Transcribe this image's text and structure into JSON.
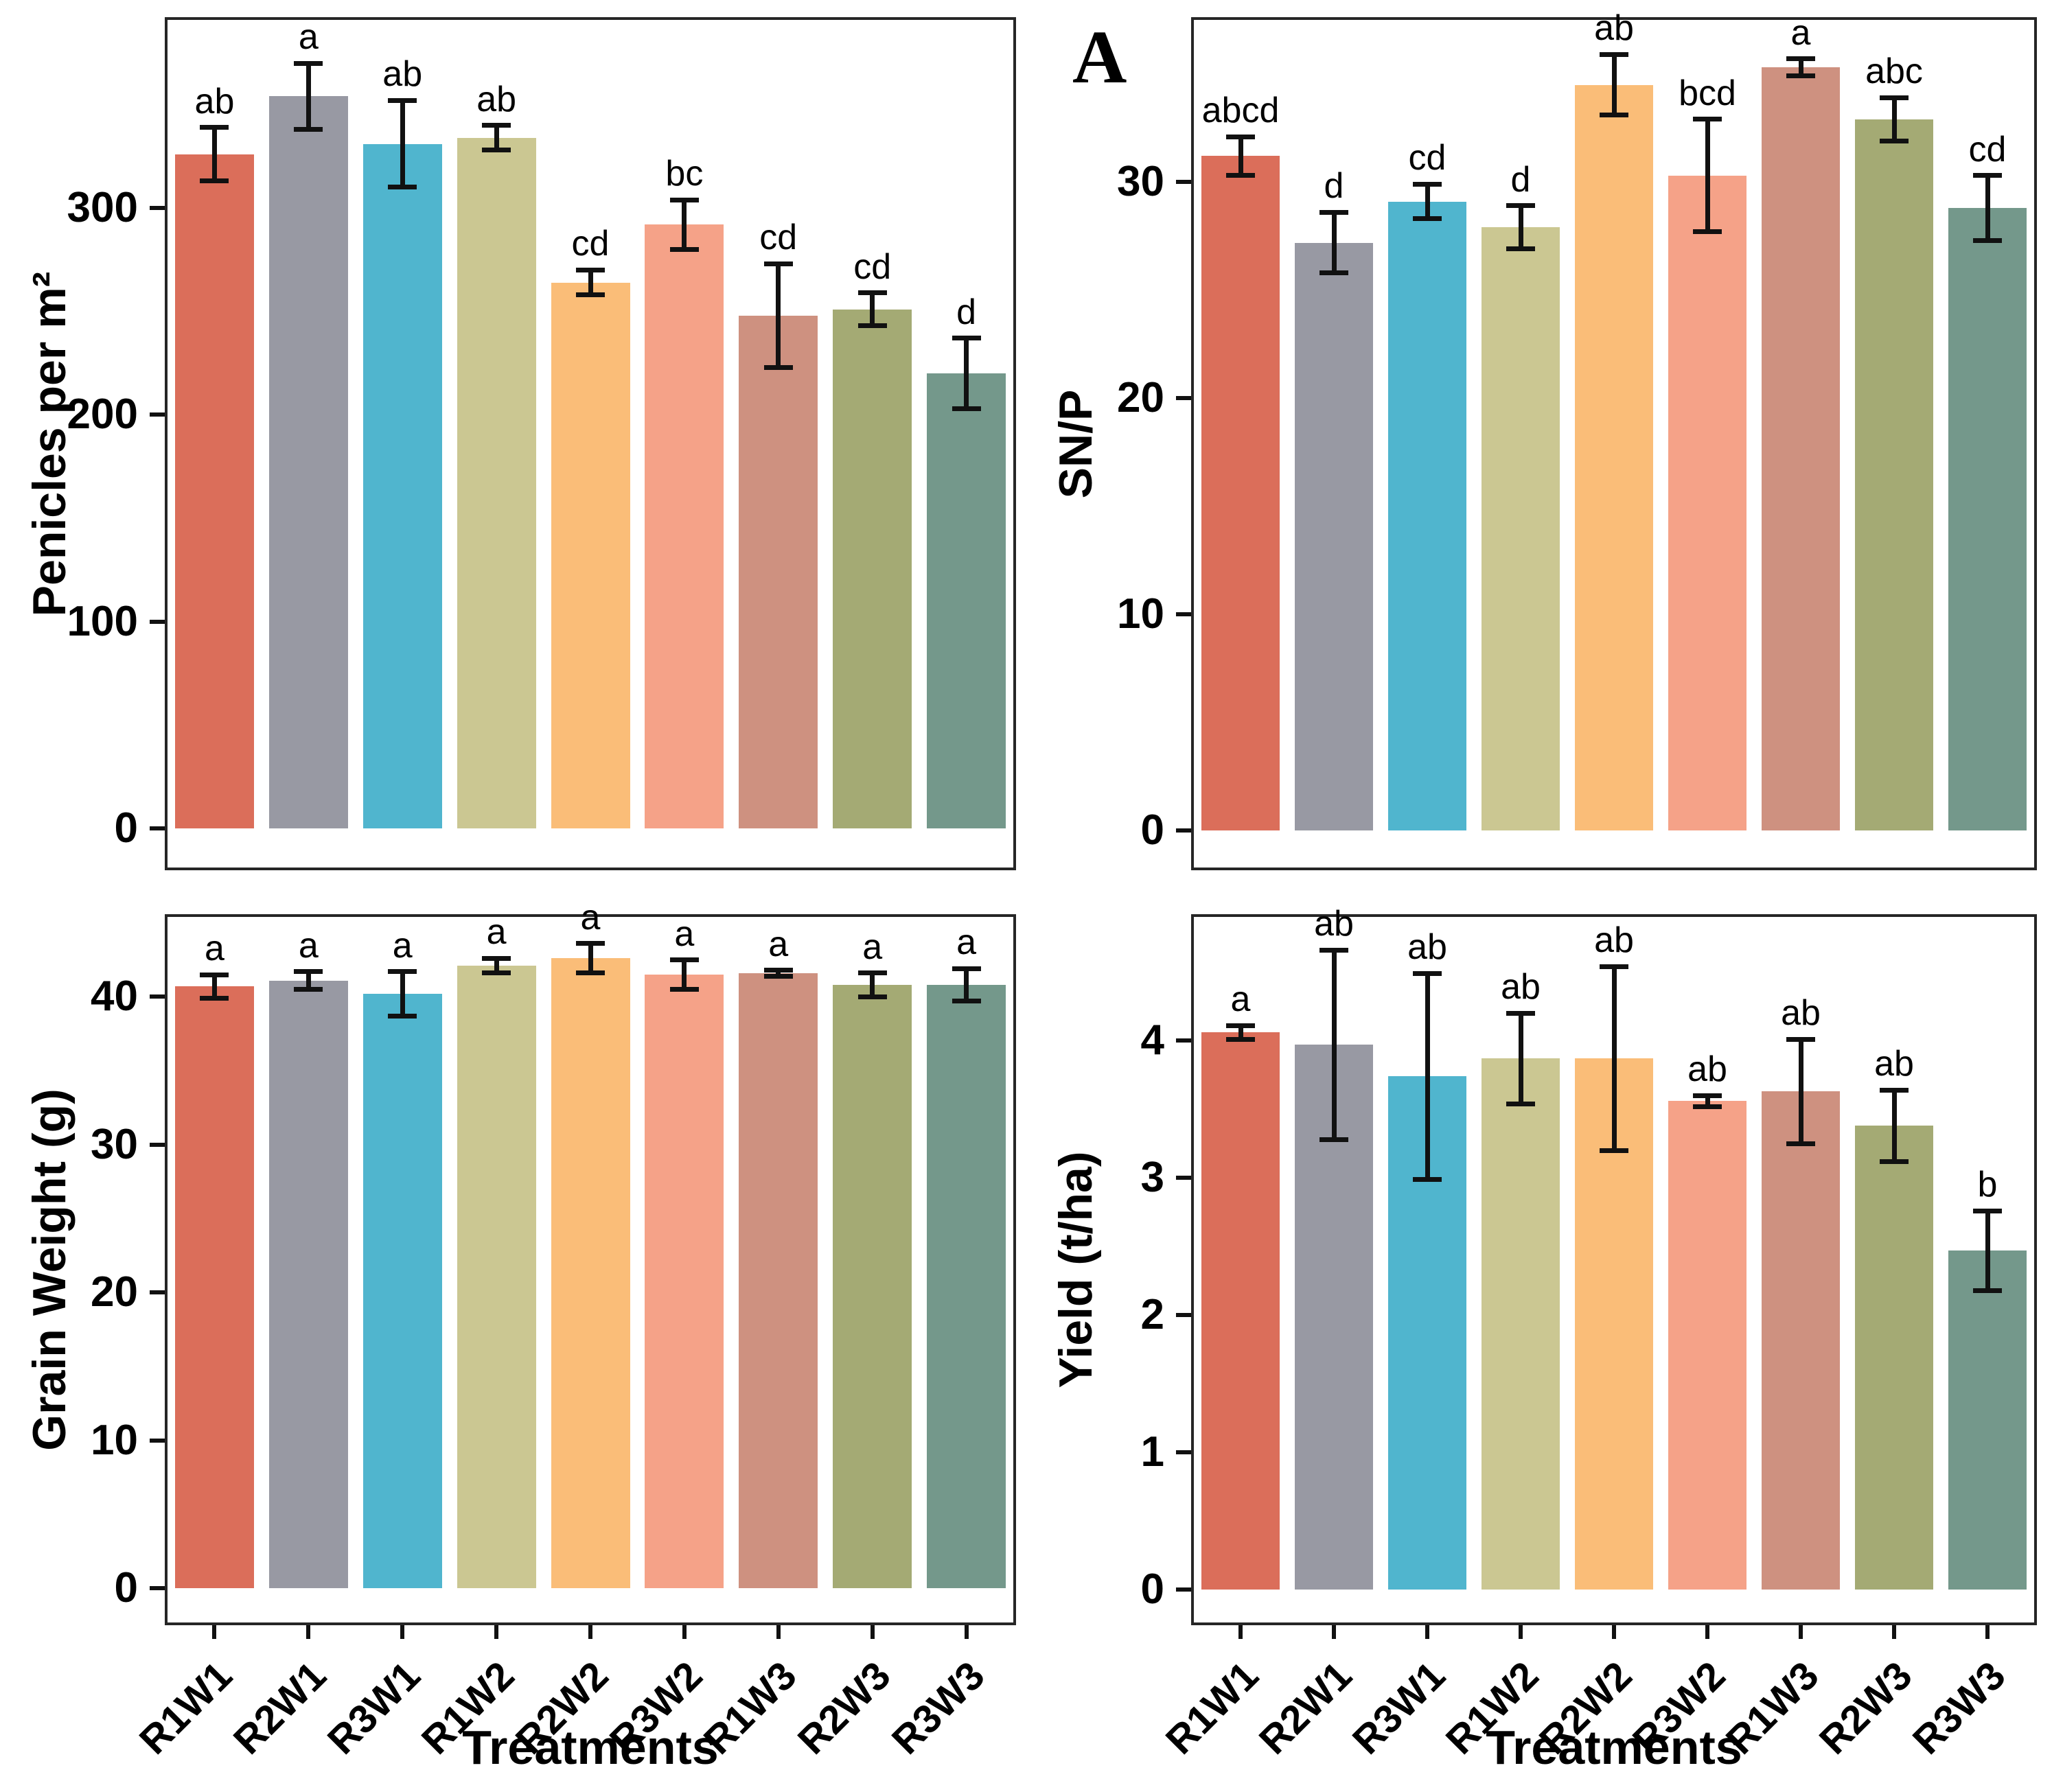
{
  "figure_label": "A",
  "x_axis_title": "Treatments",
  "categories": [
    "R1W1",
    "R2W1",
    "R3W1",
    "R1W2",
    "R2W2",
    "R3W2",
    "R1W3",
    "R2W3",
    "R3W3"
  ],
  "palette": [
    "#DB6E5A",
    "#9899A3",
    "#50B5CE",
    "#CBC792",
    "#FABD78",
    "#F5A288",
    "#CE9180",
    "#A4AA74",
    "#74988B"
  ],
  "frame_color": "#262626",
  "text_color": "#000000",
  "chart_data": [
    {
      "id": "panicles",
      "type": "bar",
      "ylabel": "Penicles per m²",
      "xlabel": "",
      "yticks": [
        0,
        100,
        200,
        300
      ],
      "ylim": [
        -19,
        391
      ],
      "show_x_labels": false,
      "legend": "none",
      "grid": false,
      "values": [
        326,
        354,
        331,
        334,
        264,
        292,
        248,
        251,
        220
      ],
      "errors": [
        13,
        16,
        21,
        6,
        6,
        12,
        25,
        8,
        17
      ],
      "letters": [
        "ab",
        "a",
        "ab",
        "ab",
        "cd",
        "bc",
        "cd",
        "cd",
        "d"
      ]
    },
    {
      "id": "snp",
      "type": "bar",
      "ylabel": "SN/P",
      "xlabel": "",
      "yticks": [
        0,
        10,
        20,
        30
      ],
      "ylim": [
        -1.7,
        37.5
      ],
      "show_x_labels": false,
      "legend": "none",
      "grid": false,
      "values": [
        31.2,
        27.2,
        29.1,
        27.9,
        34.5,
        30.3,
        35.3,
        32.9,
        28.8
      ],
      "errors": [
        0.9,
        1.4,
        0.8,
        1.0,
        1.4,
        2.6,
        0.4,
        1.0,
        1.5
      ],
      "letters": [
        "abcd",
        "d",
        "cd",
        "d",
        "ab",
        "bcd",
        "a",
        "abc",
        "cd"
      ]
    },
    {
      "id": "grain-weight",
      "type": "bar",
      "ylabel": "Grain Weight (g)",
      "xlabel": "Treatments",
      "yticks": [
        0,
        10,
        20,
        30,
        40
      ],
      "ylim": [
        -2.3,
        45.4
      ],
      "show_x_labels": true,
      "legend": "none",
      "grid": false,
      "values": [
        40.7,
        41.1,
        40.2,
        42.1,
        42.6,
        41.5,
        41.6,
        40.8,
        40.8
      ],
      "errors": [
        0.8,
        0.6,
        1.5,
        0.5,
        1.0,
        1.0,
        0.2,
        0.8,
        1.1
      ],
      "letters": [
        "a",
        "a",
        "a",
        "a",
        "a",
        "a",
        "a",
        "a",
        "a"
      ]
    },
    {
      "id": "yield",
      "type": "bar",
      "ylabel": "Yield (t/ha)",
      "xlabel": "Treatments",
      "yticks": [
        0,
        1,
        2,
        3,
        4
      ],
      "ylim": [
        -0.24,
        4.9
      ],
      "show_x_labels": true,
      "legend": "none",
      "grid": false,
      "values": [
        4.06,
        3.97,
        3.74,
        3.87,
        3.87,
        3.56,
        3.63,
        3.38,
        2.47
      ],
      "errors": [
        0.05,
        0.69,
        0.75,
        0.33,
        0.67,
        0.04,
        0.38,
        0.26,
        0.29
      ],
      "letters": [
        "a",
        "ab",
        "ab",
        "ab",
        "ab",
        "ab",
        "ab",
        "ab",
        "b"
      ]
    }
  ]
}
